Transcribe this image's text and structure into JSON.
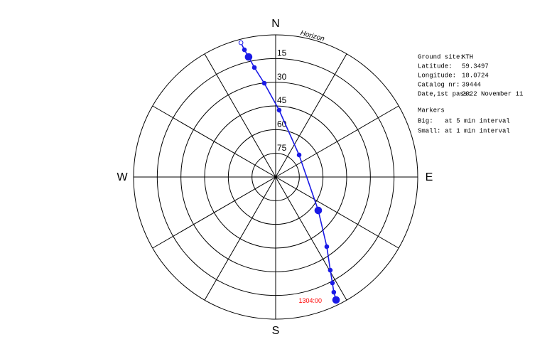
{
  "chart_data": {
    "type": "skyplot",
    "rlim": [
      90,
      0
    ],
    "rticks": [
      15,
      30,
      45,
      60,
      75
    ],
    "horizon_label": "Horizon",
    "spoke_step": 30,
    "angle_ticks": [
      {
        "value": 0,
        "label": "N"
      },
      {
        "value": 90,
        "label": "E"
      },
      {
        "value": 180,
        "label": "S"
      },
      {
        "value": 270,
        "label": "W"
      }
    ],
    "series": [
      {
        "color": "#1a1ae6",
        "azimuth": [
          345.5,
          346.2,
          347.3,
          349.0,
          353.1,
          3.0,
          46.8,
          128.1,
          143.7,
          149.6,
          151.8,
          153.2,
          153.8
        ],
        "elevation": [
          2.2,
          7.1,
          12.1,
          19.4,
          30.2,
          47.6,
          69.6,
          55.7,
          35.3,
          21.6,
          13.9,
          8.3,
          3.3
        ],
        "markers": [
          "open",
          "small",
          "big",
          "small",
          "small",
          "small",
          "small",
          "big",
          "small",
          "small",
          "small",
          "small",
          "big"
        ]
      }
    ],
    "annotation": {
      "text": "1304:00",
      "color": "#ff0000"
    },
    "info": {
      "rows": [
        {
          "label": "Ground site:",
          "value": "KTH"
        },
        {
          "label": "Latitude:",
          "value": "59.3497"
        },
        {
          "label": "Longitude:",
          "value": "18.0724"
        },
        {
          "label": "Catalog nr:",
          "value": "39444"
        },
        {
          "label": "Date,1st pass:",
          "value": "2022 November 11"
        }
      ],
      "markers_title": "Markers",
      "marker_rows": [
        {
          "label": "Big:",
          "value": "at 5 min interval"
        },
        {
          "label": "Small:",
          "value": "at 1 min interval"
        }
      ]
    }
  }
}
